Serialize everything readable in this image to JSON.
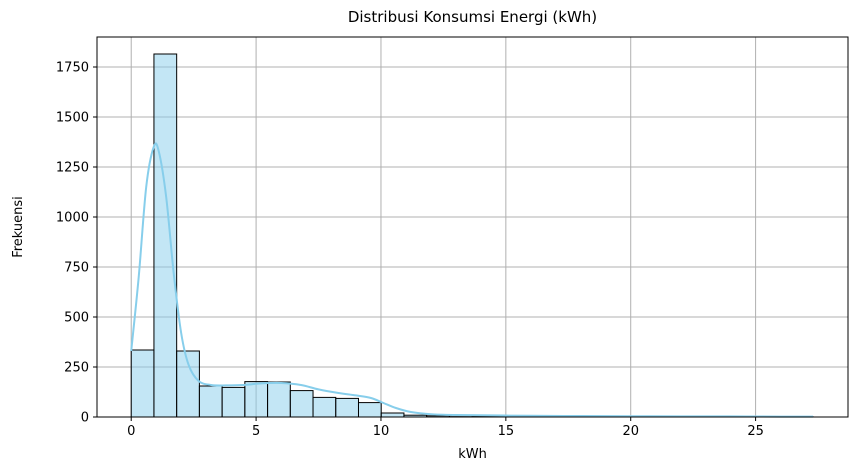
{
  "chart_data": {
    "type": "bar",
    "subtype": "histogram-with-kde",
    "title": "Distribusi Konsumsi Energi (kWh)",
    "xlabel": "kWh",
    "ylabel": "Frekuensi",
    "xlim": [
      -1.37,
      28.7
    ],
    "ylim": [
      0,
      1900
    ],
    "xticks": [
      0,
      5,
      10,
      15,
      20,
      25
    ],
    "yticks": [
      0,
      250,
      500,
      750,
      1000,
      1250,
      1500,
      1750
    ],
    "grid": true,
    "bar_color": "#87CEEB",
    "bar_edge_color": "#000000",
    "kde_color": "#87CEEB",
    "bin_edges": [
      0,
      0.91,
      1.82,
      2.73,
      3.64,
      4.55,
      5.46,
      6.37,
      7.28,
      8.19,
      9.1,
      10.01,
      10.92,
      11.83,
      12.74,
      13.65,
      14.56,
      15.47,
      16.38,
      17.29,
      18.2,
      19.11,
      20.02,
      20.93,
      21.84,
      22.75,
      23.66,
      24.57,
      25.48,
      26.39,
      27.3
    ],
    "values": [
      335,
      1815,
      330,
      155,
      148,
      177,
      175,
      132,
      98,
      93,
      72,
      20,
      9,
      6,
      6,
      5,
      4,
      3,
      3,
      2,
      2,
      2,
      1,
      1,
      1,
      1,
      1,
      1,
      1,
      1
    ],
    "kde": {
      "x": [
        0,
        0.3,
        0.6,
        0.9,
        1.1,
        1.4,
        1.7,
        2.0,
        2.3,
        2.7,
        3.2,
        3.8,
        4.5,
        5.2,
        6.0,
        6.8,
        7.5,
        8.3,
        9.0,
        9.6,
        10.1,
        10.6,
        11.2,
        12.0,
        13.0,
        14.5,
        16.0,
        18.0,
        20.0,
        22.0,
        24.0,
        26.0,
        27.3
      ],
      "y": [
        330,
        700,
        1150,
        1350,
        1330,
        1100,
        720,
        420,
        260,
        180,
        160,
        158,
        160,
        168,
        170,
        160,
        138,
        120,
        108,
        95,
        70,
        45,
        25,
        14,
        10,
        8,
        6,
        5,
        4,
        3,
        3,
        2,
        2
      ]
    }
  }
}
